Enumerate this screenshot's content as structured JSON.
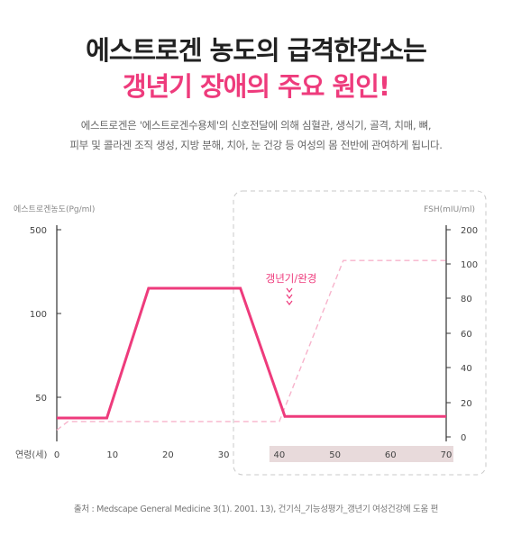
{
  "header": {
    "title_line1": "에스트로겐 농도의 급격한감소는",
    "title_line2": "갱년기 장애의 주요 원인!",
    "desc_line1": "에스트로겐은 '에스트로겐수용체'의 신호전달에 의해 심혈관, 생식기, 골격, 치매, 뼈,",
    "desc_line2": "피부 및 콜라겐 조직 생성, 지방 분해, 치아, 눈 건강 등 여성의 몸 전반에 관여하게 됩니다."
  },
  "footer": {
    "source": "출처 : Medscape General Medicine 3(1). 2001. 13), 건기식_기능성평가_갱년기 여성건강에 도움 편"
  },
  "colors": {
    "estrogen": "#ee3b7c",
    "fsh": "#f7b3cb",
    "title_accent": "#ee3b7c",
    "menopause_band": "#e8dadb"
  },
  "chart_data": {
    "type": "line",
    "xlabel": "연령(세)",
    "ylabel_left": "에스트로겐농도(Pg/ml)",
    "ylabel_right": "FSH(mIU/ml)",
    "x_ticks": [
      0,
      10,
      20,
      30,
      40,
      50,
      60,
      70
    ],
    "xlim": [
      0,
      70
    ],
    "y_left_ticks": [
      500,
      100,
      50
    ],
    "y_right_ticks": [
      200,
      100,
      80,
      60,
      40,
      20,
      0
    ],
    "y_right_lim": [
      0,
      200
    ],
    "annotation": "갱년기/완경",
    "annotation_arrow": "∨∨∨",
    "highlight_x_range": [
      40,
      70
    ],
    "series": [
      {
        "x": [
          0,
          9,
          16.5,
          33,
          41,
          70
        ],
        "y": [
          37,
          37,
          150,
          150,
          38,
          38
        ]
      },
      {
        "x": [
          0,
          2,
          40,
          51.5,
          70
        ],
        "y": [
          4,
          9,
          9,
          110,
          110
        ]
      }
    ]
  }
}
